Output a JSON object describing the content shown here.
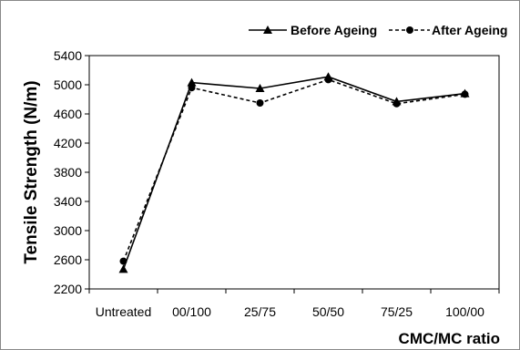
{
  "chart_data": {
    "type": "line",
    "xlabel": "CMC/MC ratio",
    "ylabel": "Tensile Strength  (N/m)",
    "categories": [
      "Untreated",
      "00/100",
      "25/75",
      "50/50",
      "75/25",
      "100/00"
    ],
    "ylim": [
      2200,
      5400
    ],
    "yticks": [
      2200,
      2600,
      3000,
      3400,
      3800,
      4200,
      4600,
      5000,
      5400
    ],
    "grid": false,
    "legend_position": "top-right",
    "series": [
      {
        "name": "Before Ageing",
        "values": [
          2470,
          5030,
          4950,
          5110,
          4770,
          4880
        ],
        "color": "#000000",
        "line_style": "solid",
        "marker": "triangle"
      },
      {
        "name": "After Ageing",
        "values": [
          2580,
          4960,
          4750,
          5070,
          4740,
          4870
        ],
        "color": "#000000",
        "line_style": "dashed",
        "marker": "circle"
      }
    ]
  }
}
